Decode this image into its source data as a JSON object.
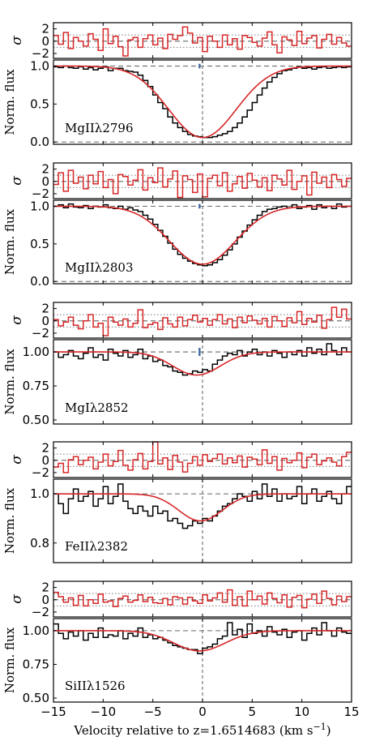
{
  "chart_data": {
    "type": "line",
    "x_label": "Velocity relative to z=1.6514683 (km s",
    "x_label_sup": "−1",
    "x_label_end": ")",
    "x_range": [
      -15,
      15
    ],
    "x_ticks": [
      -15,
      -10,
      -5,
      0,
      5,
      10,
      15
    ],
    "x_tick_labels": [
      "−15",
      "−10",
      "−5",
      "0",
      "5",
      "10",
      "15"
    ],
    "residual_label": "σ",
    "residual_ticks": [
      2,
      0,
      -2
    ],
    "residual_tick_labels": [
      "2",
      "0",
      "−2"
    ],
    "residual_range": [
      -2.8,
      3.0
    ],
    "flux_label": "Norm. flux",
    "colors": {
      "data": "#000000",
      "model": "#d62728",
      "marker": "#4a6fa5",
      "guide": "#777777"
    },
    "panels": [
      {
        "ion": "MgIIλ2796",
        "ylim": [
          -0.03,
          1.08
        ],
        "y_ticks": [
          1.0,
          0.5,
          0.0
        ],
        "y_tick_labels": [
          "1.0",
          "0.5",
          "0.0"
        ],
        "zero_line": true,
        "model": {
          "depth": 0.94,
          "center": 0.0,
          "sigma": 3.4
        },
        "flux": [
          0.99,
          0.98,
          1.0,
          0.98,
          0.97,
          0.99,
          0.96,
          0.98,
          0.95,
          0.97,
          0.99,
          0.94,
          0.97,
          0.97,
          0.94,
          0.93,
          0.92,
          0.88,
          0.81,
          0.73,
          0.62,
          0.52,
          0.44,
          0.33,
          0.25,
          0.19,
          0.14,
          0.1,
          0.08,
          0.07,
          0.06,
          0.06,
          0.07,
          0.09,
          0.11,
          0.14,
          0.19,
          0.25,
          0.33,
          0.42,
          0.52,
          0.62,
          0.71,
          0.79,
          0.85,
          0.9,
          0.94,
          0.95,
          0.97,
          0.99,
          0.97,
          0.98,
          0.96,
          0.98,
          0.99,
          0.97,
          0.98,
          0.99,
          0.98,
          0.99
        ],
        "residuals": [
          0.9,
          -0.5,
          1.4,
          -1.2,
          0.6,
          0.0,
          -0.8,
          1.2,
          0.3,
          -1.5,
          2.0,
          -0.4,
          0.8,
          -0.9,
          -2.4,
          0.2,
          0.6,
          -1.0,
          0.4,
          1.0,
          -0.6,
          0.5,
          -1.2,
          1.1,
          0.3,
          0.9,
          2.3,
          1.3,
          -0.3,
          0.6,
          -1.7,
          0.8,
          0.0,
          -1.0,
          1.0,
          -0.6,
          0.4,
          -1.3,
          0.9,
          0.6,
          -0.2,
          -0.8,
          0.5,
          1.5,
          -0.6,
          -1.9,
          0.7,
          0.2,
          -0.7,
          1.6,
          -0.4,
          0.5,
          0.9,
          -1.1,
          0.3,
          1.1,
          -0.5,
          0.6,
          -0.3,
          -0.8
        ]
      },
      {
        "ion": "MgIIλ2803",
        "ylim": [
          -0.03,
          1.08
        ],
        "y_ticks": [
          1.0,
          0.5,
          0.0
        ],
        "y_tick_labels": [
          "1.0",
          "0.5",
          "0.0"
        ],
        "zero_line": true,
        "model": {
          "depth": 0.77,
          "center": 0.0,
          "sigma": 3.3
        },
        "flux": [
          1.0,
          1.02,
          0.98,
          1.03,
          0.99,
          0.98,
          1.01,
          0.97,
          1.0,
          0.99,
          1.02,
          0.98,
          0.97,
          1.0,
          0.96,
          0.98,
          0.95,
          0.93,
          0.88,
          0.83,
          0.76,
          0.68,
          0.6,
          0.51,
          0.43,
          0.36,
          0.31,
          0.27,
          0.24,
          0.22,
          0.21,
          0.22,
          0.25,
          0.29,
          0.35,
          0.42,
          0.5,
          0.59,
          0.67,
          0.75,
          0.82,
          0.88,
          0.93,
          0.96,
          0.97,
          0.99,
          1.0,
          0.98,
          1.02,
          0.97,
          0.99,
          1.01,
          0.96,
          1.02,
          0.98,
          1.0,
          0.97,
          1.03,
          0.99,
          1.0
        ],
        "residuals": [
          -0.5,
          1.4,
          -1.6,
          1.8,
          -0.3,
          0.7,
          -1.2,
          1.0,
          -0.4,
          1.6,
          -1.0,
          0.3,
          -2.0,
          1.1,
          0.8,
          -0.6,
          0.2,
          1.9,
          -1.4,
          0.6,
          -0.2,
          2.2,
          -0.9,
          0.4,
          1.7,
          -2.6,
          0.9,
          0.3,
          -1.8,
          1.2,
          -2.5,
          0.5,
          1.0,
          -0.7,
          1.4,
          -1.6,
          -0.4,
          0.8,
          -1.1,
          1.3,
          0.2,
          -0.9,
          0.6,
          -1.5,
          1.0,
          0.4,
          -0.6,
          1.8,
          -1.3,
          0.0,
          0.9,
          -2.2,
          1.5,
          -0.3,
          0.7,
          -1.0,
          1.1,
          0.3,
          -0.8,
          0.5
        ]
      },
      {
        "ion": "MgIλ2852",
        "ylim": [
          0.47,
          1.09
        ],
        "y_ticks": [
          1.0,
          0.75,
          0.5
        ],
        "y_tick_labels": [
          "1.00",
          "0.75",
          "0.50"
        ],
        "zero_line": false,
        "model": {
          "depth": 0.17,
          "center": -0.6,
          "sigma": 2.4
        },
        "flux": [
          1.0,
          0.96,
          0.98,
          1.01,
          0.97,
          0.95,
          0.99,
          1.03,
          0.96,
          0.98,
          0.94,
          1.02,
          0.99,
          0.97,
          1.01,
          0.96,
          0.98,
          1.02,
          0.95,
          0.97,
          0.93,
          0.94,
          0.9,
          0.89,
          0.86,
          0.85,
          0.83,
          0.84,
          0.86,
          0.85,
          0.87,
          0.86,
          0.91,
          0.94,
          0.97,
          0.99,
          0.98,
          1.01,
          0.97,
          1.0,
          1.02,
          0.98,
          1.0,
          0.97,
          1.01,
          0.99,
          0.96,
          1.0,
          0.98,
          1.01,
          0.97,
          1.03,
          0.99,
          1.02,
          0.98,
          1.06,
          1.01,
          0.98,
          1.03,
          1.0
        ],
        "residuals": [
          0.2,
          -0.8,
          -0.2,
          0.6,
          -0.7,
          -1.3,
          0.0,
          1.0,
          -1.0,
          -0.4,
          -2.4,
          0.6,
          -0.2,
          -0.7,
          0.3,
          -1.0,
          -0.4,
          1.8,
          -1.1,
          -0.6,
          -0.3,
          -1.4,
          0.5,
          -0.5,
          -1.0,
          0.6,
          -0.8,
          0.2,
          0.9,
          -0.2,
          0.4,
          -0.7,
          0.2,
          1.0,
          -0.5,
          0.3,
          -1.1,
          0.6,
          -0.3,
          0.8,
          0.1,
          -0.5,
          0.4,
          -1.0,
          0.7,
          0.0,
          -0.9,
          0.5,
          -0.3,
          1.5,
          -0.6,
          0.4,
          -0.2,
          0.9,
          -1.2,
          0.2,
          2.2,
          0.6,
          1.9,
          0.3
        ]
      },
      {
        "ion": "FeIIλ2382",
        "ylim": [
          0.72,
          1.06
        ],
        "y_ticks": [
          1.0,
          0.8
        ],
        "y_tick_labels": [
          "1.0",
          "0.8"
        ],
        "zero_line": false,
        "model": {
          "depth": 0.11,
          "center": -0.2,
          "sigma": 2.2
        },
        "flux": [
          1.0,
          0.96,
          0.92,
          0.98,
          1.02,
          0.97,
          0.99,
          1.01,
          0.95,
          0.98,
          1.03,
          0.96,
          0.99,
          1.04,
          0.97,
          0.94,
          0.92,
          0.95,
          0.93,
          0.91,
          0.95,
          0.92,
          0.93,
          0.89,
          0.9,
          0.88,
          0.86,
          0.87,
          0.89,
          0.88,
          0.9,
          0.89,
          0.91,
          0.93,
          0.95,
          0.96,
          0.98,
          1.0,
          0.99,
          0.97,
          1.01,
          0.98,
          1.04,
          0.99,
          1.02,
          0.97,
          1.0,
          0.98,
          0.99,
          1.03,
          0.96,
          1.0,
          1.02,
          0.97,
          0.99,
          1.01,
          0.98,
          0.96,
          1.0,
          1.03
        ],
        "residuals": [
          -1.1,
          -0.5,
          -2.0,
          0.1,
          0.6,
          -0.7,
          0.0,
          0.5,
          -1.4,
          -0.3,
          1.0,
          -0.9,
          -0.2,
          1.6,
          -0.8,
          -1.6,
          0.1,
          1.1,
          -1.4,
          -0.2,
          3.1,
          -0.6,
          0.4,
          -1.5,
          0.8,
          -0.3,
          -1.9,
          -0.5,
          0.6,
          -0.8,
          0.9,
          -0.2,
          0.3,
          1.0,
          -0.6,
          0.4,
          -0.4,
          0.7,
          -1.1,
          0.5,
          0.2,
          -0.7,
          1.7,
          -0.5,
          0.6,
          -1.6,
          0.3,
          -0.4,
          0.0,
          1.2,
          -1.2,
          0.5,
          1.0,
          -0.7,
          -0.1,
          0.4,
          -0.3,
          -0.9,
          0.6,
          1.3
        ]
      },
      {
        "ion": "SiIIλ1526",
        "ylim": [
          0.47,
          1.09
        ],
        "y_ticks": [
          1.0,
          0.75,
          0.5
        ],
        "y_tick_labels": [
          "1.00",
          "0.75",
          "0.50"
        ],
        "zero_line": false,
        "model": {
          "depth": 0.15,
          "center": -0.3,
          "sigma": 2.6
        },
        "flux": [
          1.05,
          0.98,
          0.94,
          0.99,
          0.96,
          1.0,
          0.93,
          0.98,
          0.95,
          1.02,
          0.95,
          0.97,
          0.96,
          1.0,
          0.94,
          0.98,
          0.96,
          1.02,
          0.95,
          0.97,
          0.94,
          0.95,
          0.93,
          0.91,
          0.89,
          0.88,
          0.87,
          0.86,
          0.86,
          0.83,
          0.87,
          0.88,
          0.9,
          0.94,
          0.96,
          1.06,
          0.97,
          1.01,
          0.95,
          1.05,
          0.98,
          1.0,
          0.96,
          1.03,
          0.99,
          0.97,
          1.01,
          0.95,
          0.99,
          1.0,
          0.93,
          0.98,
          1.02,
          0.97,
          1.06,
          1.0,
          0.96,
          1.02,
          0.99,
          0.98
        ],
        "residuals": [
          1.2,
          0.5,
          -0.4,
          0.3,
          -0.9,
          0.7,
          -1.0,
          0.0,
          -0.6,
          0.9,
          -0.4,
          -0.2,
          -1.1,
          0.2,
          0.6,
          -0.4,
          -0.1,
          0.8,
          -0.3,
          0.4,
          -0.5,
          -0.6,
          0.2,
          -0.8,
          0.5,
          0.3,
          -0.7,
          0.4,
          -0.2,
          -0.6,
          0.8,
          -0.2,
          0.3,
          1.1,
          -0.4,
          1.6,
          -0.9,
          0.5,
          -1.0,
          1.4,
          0.0,
          0.6,
          -0.7,
          1.1,
          0.2,
          -0.5,
          0.8,
          -1.2,
          0.4,
          0.7,
          -1.3,
          0.1,
          0.9,
          -0.6,
          1.4,
          0.2,
          -0.8,
          0.6,
          -0.3,
          0.5
        ]
      }
    ]
  }
}
